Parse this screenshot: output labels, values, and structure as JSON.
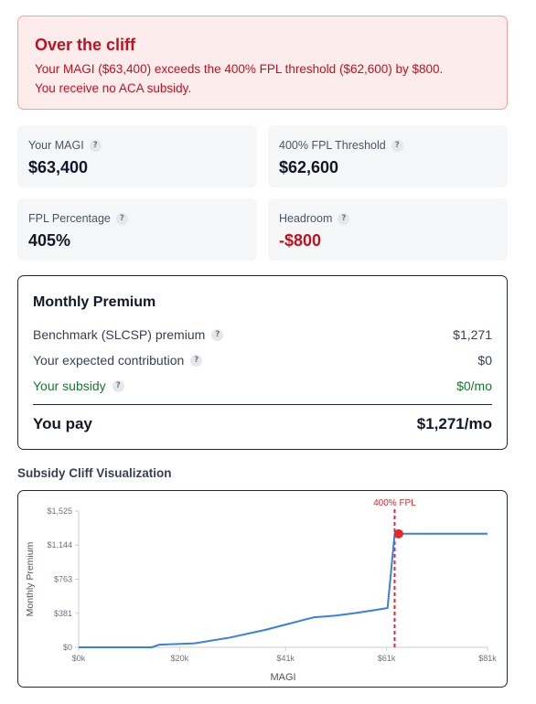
{
  "alert": {
    "title": "Over the cliff",
    "line1": "Your MAGI ($63,400) exceeds the 400% FPL threshold ($62,600) by $800.",
    "line2": "You receive no ACA subsidy."
  },
  "stats": {
    "magi": {
      "label": "Your MAGI",
      "value": "$63,400"
    },
    "threshold": {
      "label": "400% FPL Threshold",
      "value": "$62,600"
    },
    "fpl_pct": {
      "label": "FPL Percentage",
      "value": "405%"
    },
    "headroom": {
      "label": "Headroom",
      "value": "-$800"
    }
  },
  "help_glyph": "?",
  "premium": {
    "title": "Monthly Premium",
    "benchmark": {
      "label": "Benchmark (SLCSP) premium",
      "value": "$1,271"
    },
    "contribution": {
      "label": "Your expected contribution",
      "value": "$0"
    },
    "subsidy": {
      "label": "Your subsidy",
      "value": "$0/mo"
    },
    "pay": {
      "label": "You pay",
      "value": "$1,271/mo"
    }
  },
  "viz": {
    "title": "Subsidy Cliff Visualization"
  },
  "colors": {
    "danger": "#c0111f",
    "line": "#3b7fe0",
    "subsidy_green": "#137a2f"
  },
  "chart_data": {
    "type": "line",
    "xlabel": "MAGI",
    "ylabel": "Monthly Premium",
    "xlim": [
      0,
      81000
    ],
    "ylim": [
      0,
      1525
    ],
    "x_ticks": [
      0,
      20000,
      41000,
      61000,
      81000
    ],
    "x_tick_labels": [
      "$0k",
      "$20k",
      "$41k",
      "$61k",
      "$81k"
    ],
    "y_ticks": [
      0,
      381,
      763,
      1144,
      1525
    ],
    "y_tick_labels": [
      "$0",
      "$381",
      "$763",
      "$1,144",
      "$1,525"
    ],
    "series": [
      {
        "x": [
          0,
          14500,
          16000,
          23000,
          30000,
          37000,
          41000,
          46500,
          51000,
          55000,
          59000,
          61200,
          62600,
          63400,
          81000
        ],
        "y": [
          0,
          0,
          30,
          45,
          110,
          195,
          255,
          335,
          355,
          385,
          420,
          440,
          1271,
          1271,
          1271
        ]
      }
    ],
    "threshold": {
      "x": 62600,
      "label": "400% FPL"
    },
    "marker": {
      "x": 63400,
      "y": 1271
    },
    "grid": false
  }
}
